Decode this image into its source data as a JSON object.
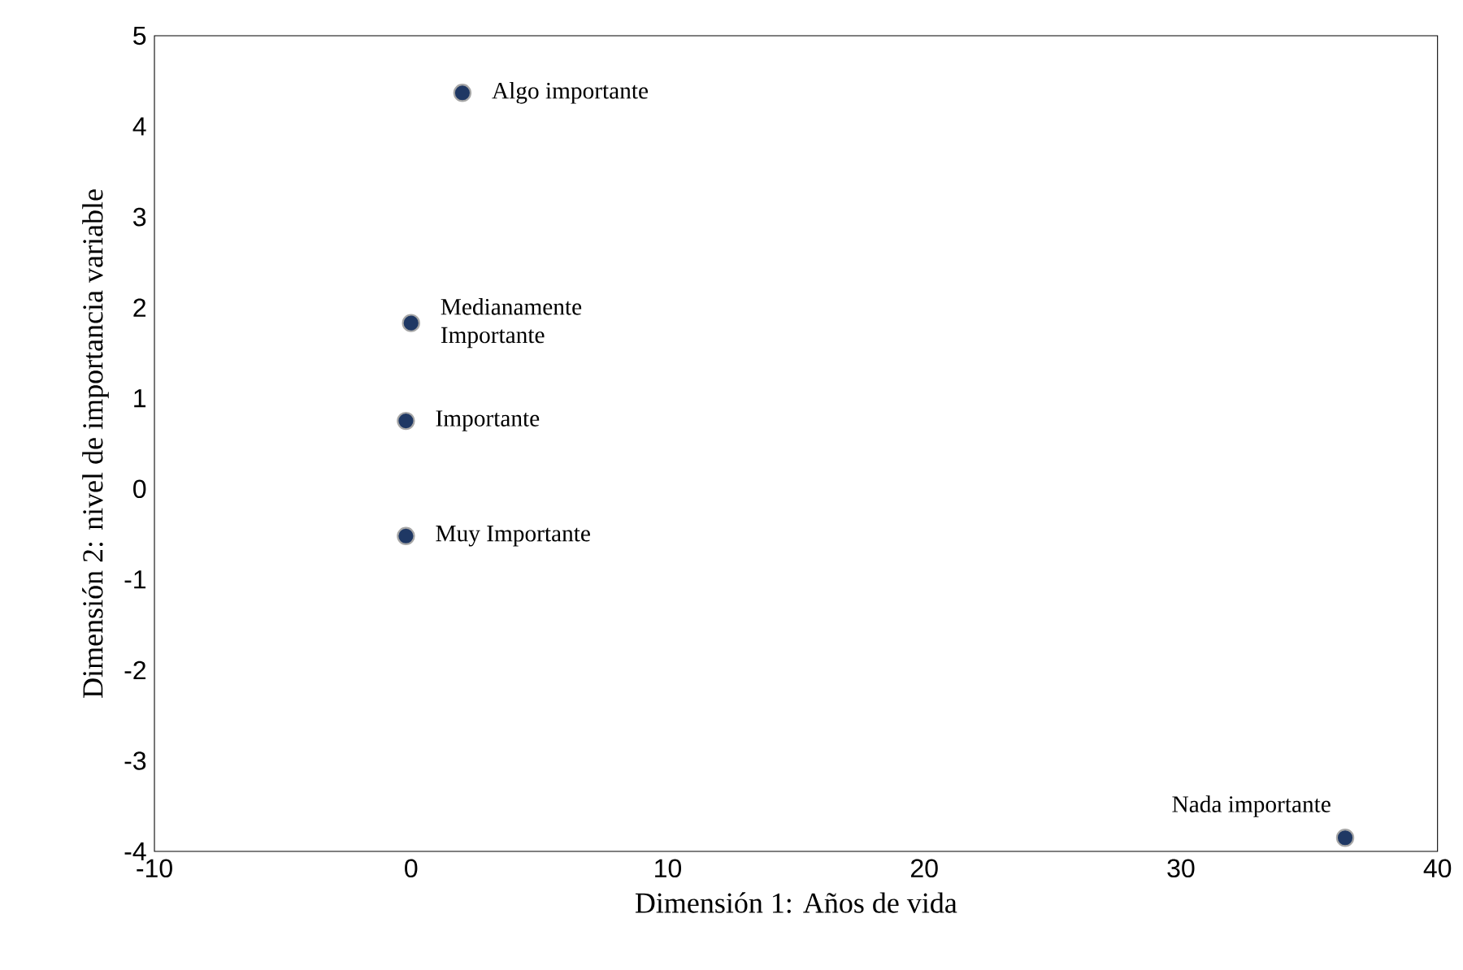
{
  "chart_data": {
    "type": "scatter",
    "xlabel": "Dimensión 1: Años de vida",
    "ylabel": "Dimensión 2: nivel de importancia variable",
    "x": [
      2.0,
      0.0,
      -0.2,
      -0.2,
      36.4
    ],
    "values": [
      4.37,
      1.83,
      0.75,
      -0.52,
      -3.85
    ],
    "color": "#1f3864",
    "grid": false,
    "xlim": [
      -10,
      40
    ],
    "xticks": [
      -10,
      0,
      10,
      20,
      30,
      40
    ],
    "ylim": [
      -4,
      5
    ],
    "yticks": [
      -4,
      -3,
      -2,
      -1,
      0,
      1,
      2,
      3,
      4,
      5
    ],
    "annotations": [
      {
        "text": "Algo importante",
        "x": 2.0,
        "y": 4.37
      },
      {
        "text": "Medianamente Importante",
        "x": 0.0,
        "y": 1.83
      },
      {
        "text": "Importante",
        "x": -0.2,
        "y": 0.75
      },
      {
        "text": "Muy Importante",
        "x": -0.2,
        "y": -0.52
      },
      {
        "text": "Nada importante",
        "x": 36.4,
        "y": -3.85
      }
    ]
  }
}
